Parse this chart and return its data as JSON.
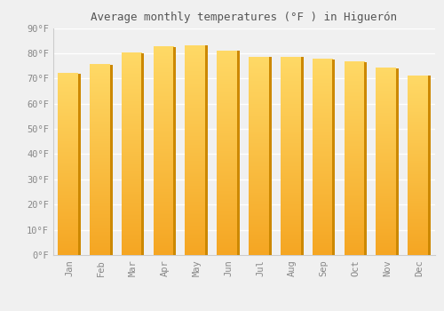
{
  "months": [
    "Jan",
    "Feb",
    "Mar",
    "Apr",
    "May",
    "Jun",
    "Jul",
    "Aug",
    "Sep",
    "Oct",
    "Nov",
    "Dec"
  ],
  "temperatures": [
    72.0,
    75.5,
    80.0,
    82.5,
    83.0,
    81.0,
    78.5,
    78.5,
    77.5,
    76.5,
    74.0,
    71.0
  ],
  "bar_color_top": "#FFD966",
  "bar_color_bottom": "#F5A623",
  "bar_color_main": "#FFA520",
  "bar_edge_color": "#CC8800",
  "title": "Average monthly temperatures (°F ) in Higuerón",
  "ylim": [
    0,
    90
  ],
  "yticks": [
    0,
    10,
    20,
    30,
    40,
    50,
    60,
    70,
    80,
    90
  ],
  "ytick_labels": [
    "0°F",
    "10°F",
    "20°F",
    "30°F",
    "40°F",
    "50°F",
    "60°F",
    "70°F",
    "80°F",
    "90°F"
  ],
  "background_color": "#f0f0f0",
  "plot_bg_color": "#f0f0f0",
  "grid_color": "#ffffff",
  "title_fontsize": 9,
  "tick_fontsize": 7.5,
  "tick_color": "#888888",
  "title_color": "#555555"
}
